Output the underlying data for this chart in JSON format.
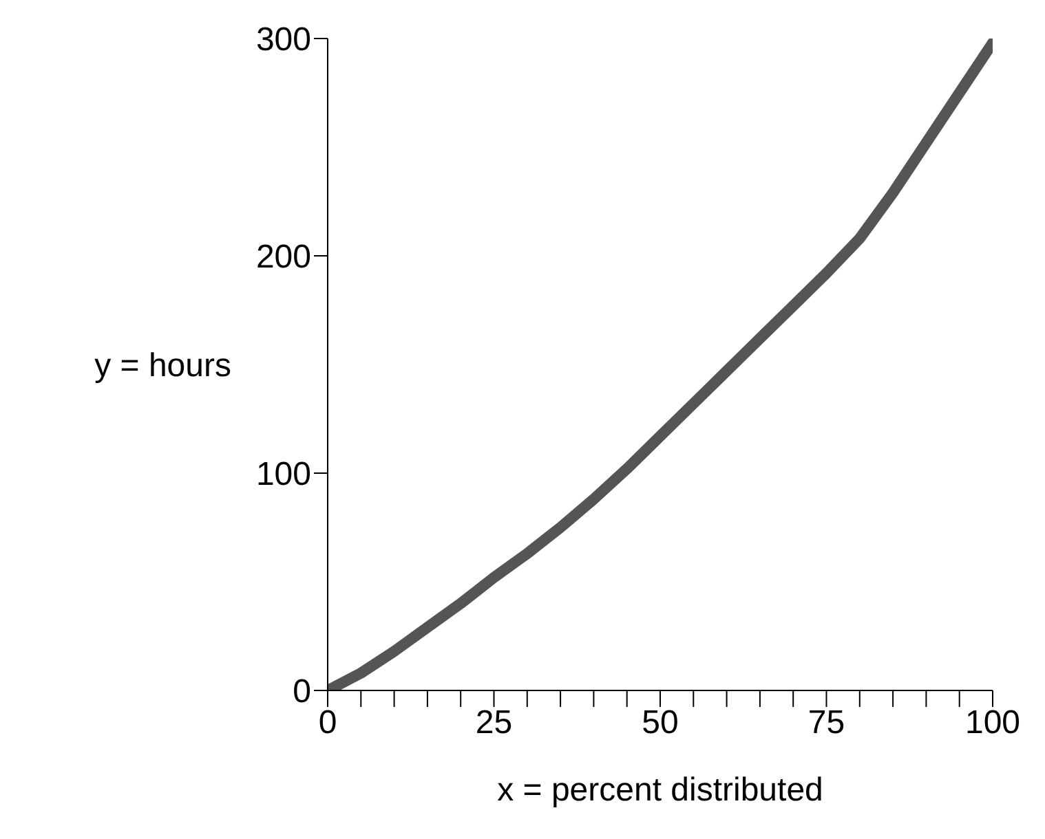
{
  "chart_data": {
    "type": "line",
    "xlabel": "x = percent distributed",
    "ylabel": "y = hours",
    "x": [
      0,
      5,
      10,
      15,
      20,
      25,
      30,
      35,
      40,
      45,
      50,
      55,
      60,
      65,
      70,
      75,
      80,
      85,
      90,
      95,
      100
    ],
    "series": [
      {
        "color": "#555555",
        "values": [
          0,
          8,
          18,
          29,
          40,
          52,
          63,
          75,
          88,
          102,
          117,
          132,
          147,
          162,
          177,
          192,
          208,
          229,
          252,
          275,
          298
        ]
      }
    ],
    "xlim": [
      0,
      100
    ],
    "xticks": [
      0,
      {
        "value": 5,
        "label": null
      },
      {
        "value": 10,
        "label": null
      },
      {
        "value": 15,
        "label": null
      },
      {
        "value": 20,
        "label": null
      },
      25,
      {
        "value": 30,
        "label": null
      },
      {
        "value": 35,
        "label": null
      },
      {
        "value": 40,
        "label": null
      },
      {
        "value": 45,
        "label": null
      },
      50,
      {
        "value": 55,
        "label": null
      },
      {
        "value": 60,
        "label": null
      },
      {
        "value": 65,
        "label": null
      },
      {
        "value": 70,
        "label": null
      },
      75,
      {
        "value": 80,
        "label": null
      },
      {
        "value": 85,
        "label": null
      },
      {
        "value": 90,
        "label": null
      },
      {
        "value": 95,
        "label": null
      },
      100
    ],
    "ylim": [
      0,
      300
    ],
    "yticks": [
      0,
      100,
      200,
      300
    ],
    "grid": false,
    "legend": false,
    "marker": "none",
    "line_style": "solid"
  }
}
